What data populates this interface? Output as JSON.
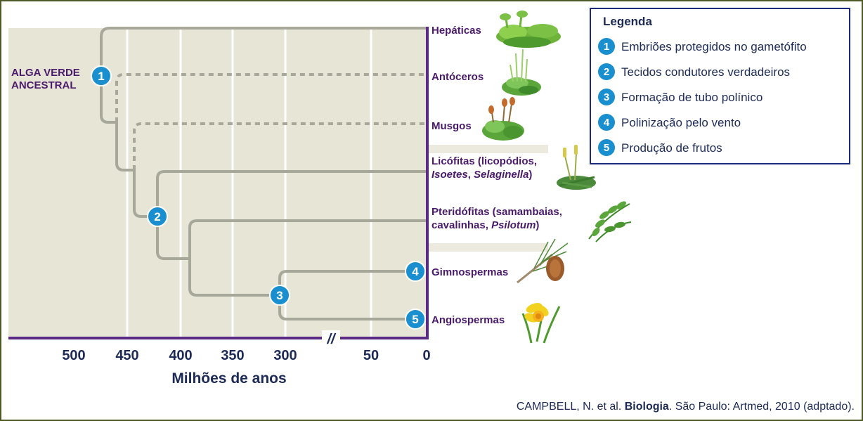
{
  "root_label": [
    "ALGA VERDE",
    "ANCESTRAL"
  ],
  "axis": {
    "title": "Milhões de anos",
    "ticks": [
      {
        "label": "500",
        "value": 500
      },
      {
        "label": "450",
        "value": 450
      },
      {
        "label": "400",
        "value": 400
      },
      {
        "label": "350",
        "value": 350
      },
      {
        "label": "300",
        "value": 300
      },
      {
        "label": "50",
        "value": 50
      },
      {
        "label": "0",
        "value": 0
      }
    ],
    "break_symbol": "//"
  },
  "taxa": [
    {
      "id": "hepaticas",
      "lines": [
        [
          {
            "t": "Hepáticas"
          }
        ]
      ]
    },
    {
      "id": "antoceros",
      "lines": [
        [
          {
            "t": "Antóceros"
          }
        ]
      ]
    },
    {
      "id": "musgos",
      "lines": [
        [
          {
            "t": "Musgos"
          }
        ]
      ]
    },
    {
      "id": "licofitas",
      "lines": [
        [
          {
            "t": "Licófitas (licopódios,"
          }
        ],
        [
          {
            "t": "Isoetes",
            "i": true
          },
          {
            "t": ", "
          },
          {
            "t": "Selaginella",
            "i": true
          },
          {
            "t": ")"
          }
        ]
      ]
    },
    {
      "id": "pteridofitas",
      "lines": [
        [
          {
            "t": "Pteridófitas (samambaias,"
          }
        ],
        [
          {
            "t": "cavalinhas, "
          },
          {
            "t": "Psilotum",
            "i": true
          },
          {
            "t": ")"
          }
        ]
      ]
    },
    {
      "id": "gimnospermas",
      "lines": [
        [
          {
            "t": "Gimnospermas"
          }
        ]
      ]
    },
    {
      "id": "angiospermas",
      "lines": [
        [
          {
            "t": "Angiospermas"
          }
        ]
      ]
    }
  ],
  "markers": [
    "1",
    "2",
    "3",
    "4",
    "5"
  ],
  "legend": {
    "title": "Legenda",
    "items": [
      {
        "num": "1",
        "text": "Embriões protegidos no gametófito"
      },
      {
        "num": "2",
        "text": "Tecidos condutores verdadeiros"
      },
      {
        "num": "3",
        "text": "Formação de tubo polínico"
      },
      {
        "num": "4",
        "text": "Polinização pelo vento"
      },
      {
        "num": "5",
        "text": "Produção de frutos"
      }
    ]
  },
  "source": {
    "pre": "CAMPBELL, N. et al. ",
    "bold": "Biologia",
    "post": ". São Paulo: Artmed, 2010 (adptado)."
  },
  "colors": {
    "branch": "#a8a89a",
    "axis": "#5b2a86",
    "marker": "#1a8fcf",
    "panel": "#e7e5d6",
    "frame": "#4d5a28",
    "text": "#4a1a6b"
  },
  "icons": [
    "liverwort-icon",
    "hornwort-icon",
    "moss-icon",
    "lycophyte-icon",
    "fern-icon",
    "pine-branch-icon",
    "daffodil-icon"
  ]
}
